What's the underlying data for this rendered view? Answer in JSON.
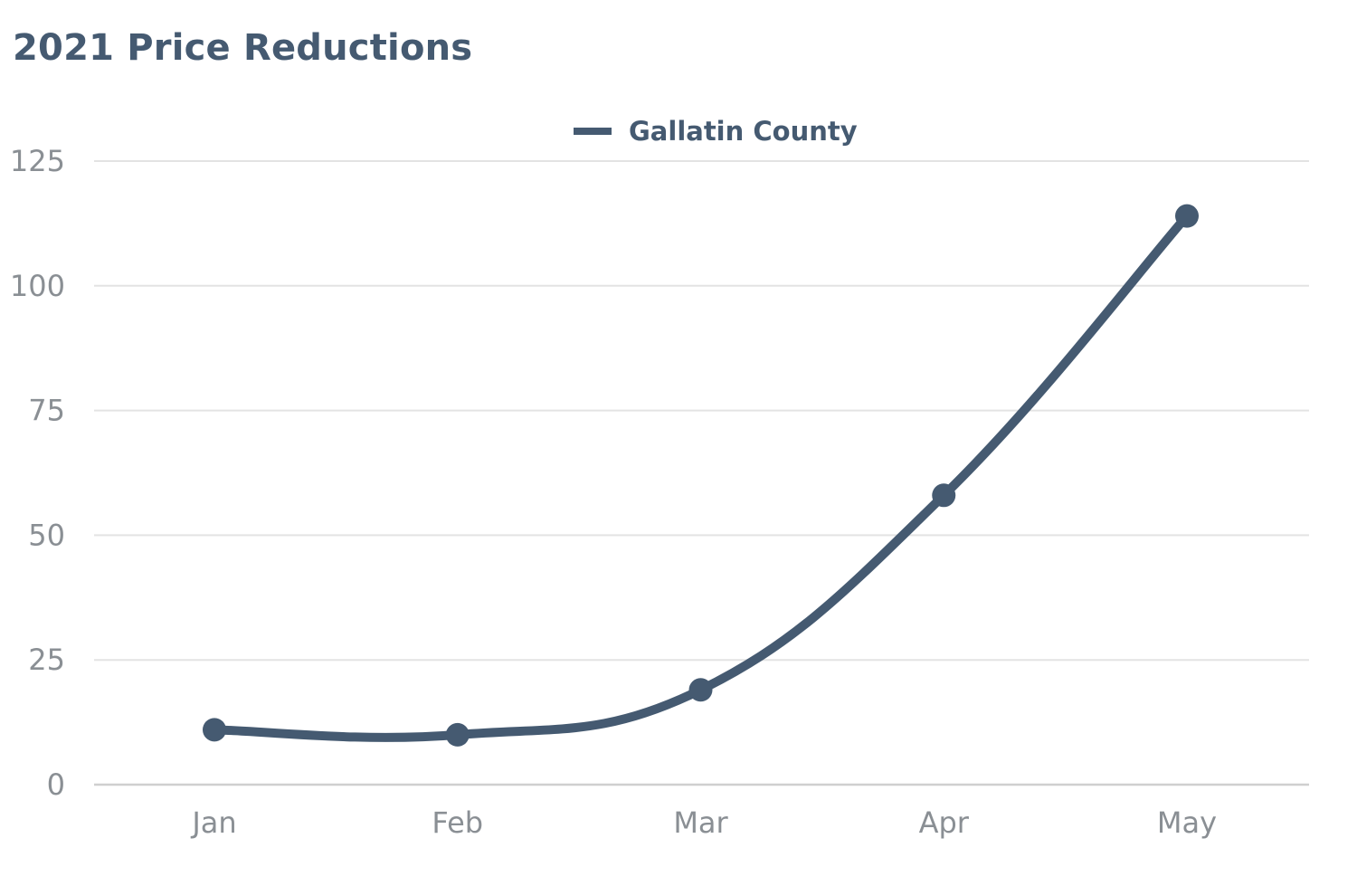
{
  "chart_data": {
    "type": "line",
    "title": "2021 Price Reductions",
    "xlabel": "",
    "ylabel": "",
    "categories": [
      "Jan",
      "Feb",
      "Mar",
      "Apr",
      "May"
    ],
    "series": [
      {
        "name": "Gallatin County",
        "values": [
          11,
          10,
          19,
          58,
          114
        ],
        "color": "#455a71"
      }
    ],
    "ylim": [
      0,
      125
    ],
    "yticks": [
      0,
      25,
      50,
      75,
      100,
      125
    ],
    "grid": true,
    "legend": "top-center",
    "smooth": true,
    "grid_color": "#e3e3e3",
    "tick_color": "#8a8f94"
  }
}
